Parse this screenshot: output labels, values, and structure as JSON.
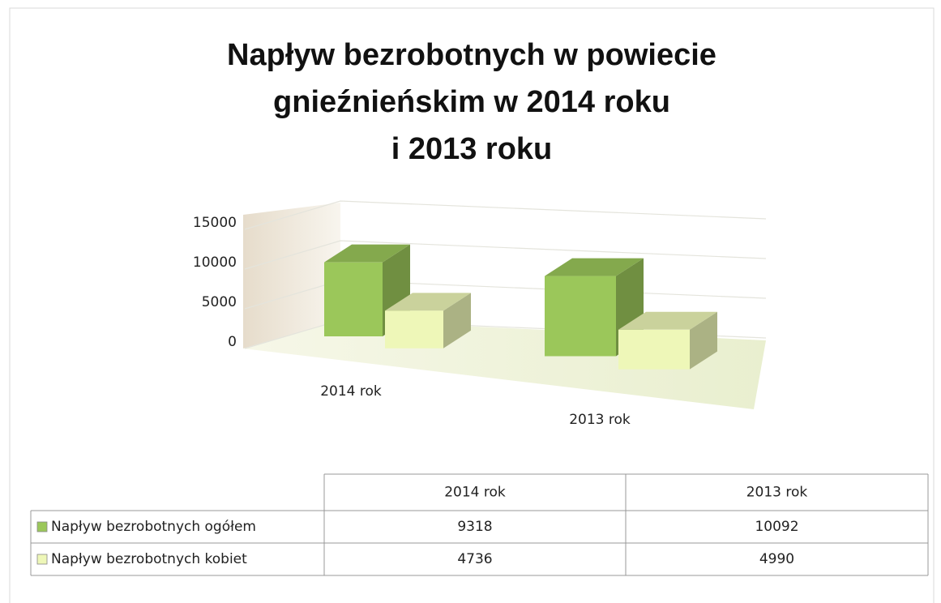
{
  "chart_data": {
    "type": "bar3d",
    "title": [
      "Napływ bezrobotnych w powiecie",
      "gnieźnieńskim w 2014 roku",
      "i 2013 roku"
    ],
    "categories": [
      "2014 rok",
      "2013 rok"
    ],
    "series": [
      {
        "name": "Napływ bezrobotnych ogółem",
        "color": "#9bc75a",
        "values": [
          9318,
          10092
        ]
      },
      {
        "name": "Napływ bezrobotnych kobiet",
        "color": "#eef7b8",
        "values": [
          4736,
          4990
        ]
      }
    ],
    "ylim": [
      0,
      15000
    ],
    "yticks": [
      0,
      5000,
      10000,
      15000
    ],
    "grid": true,
    "data_table": true
  }
}
